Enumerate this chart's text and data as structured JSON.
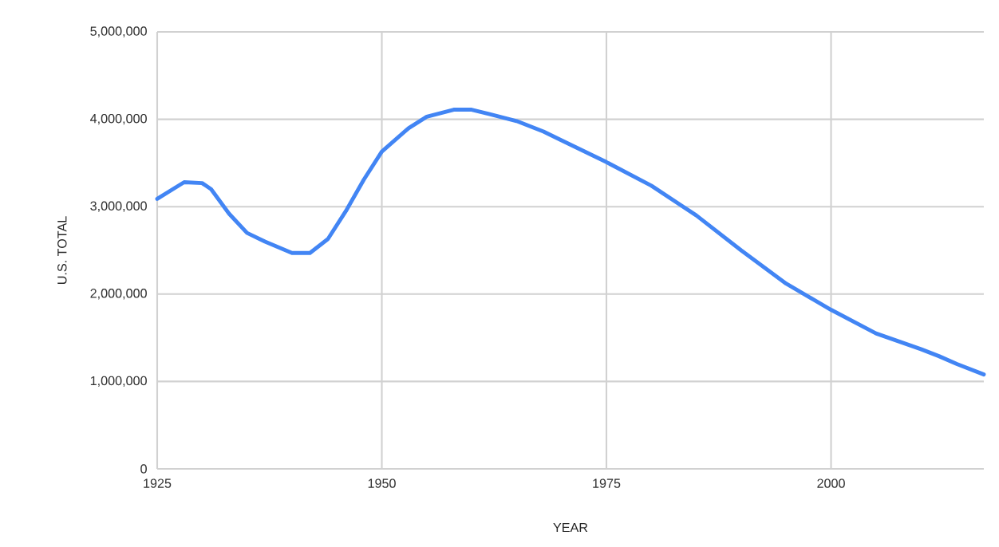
{
  "chart_data": {
    "type": "line",
    "xlabel": "YEAR",
    "ylabel": "U.S. TOTAL",
    "x": [
      1925,
      1928,
      1930,
      1931,
      1933,
      1935,
      1937,
      1940,
      1942,
      1944,
      1946,
      1948,
      1950,
      1953,
      1955,
      1958,
      1960,
      1962,
      1965,
      1968,
      1970,
      1975,
      1980,
      1985,
      1990,
      1995,
      2000,
      2005,
      2010,
      2012,
      2014,
      2017
    ],
    "series": [
      {
        "color": "#4285f4",
        "values": [
          3090000,
          3280000,
          3270000,
          3200000,
          2920000,
          2700000,
          2600000,
          2470000,
          2470000,
          2630000,
          2950000,
          3310000,
          3630000,
          3900000,
          4030000,
          4110000,
          4110000,
          4060000,
          3980000,
          3860000,
          3760000,
          3510000,
          3240000,
          2900000,
          2500000,
          2120000,
          1820000,
          1550000,
          1370000,
          1290000,
          1200000,
          1080000
        ]
      }
    ],
    "xlim": [
      1925,
      2017
    ],
    "ylim": [
      0,
      5000000
    ],
    "xticks": [
      1925,
      1950,
      1975,
      2000
    ],
    "yticks": [
      {
        "value": 0,
        "label": "0"
      },
      {
        "value": 1000000,
        "label": "1,000,000"
      },
      {
        "value": 2000000,
        "label": "2,000,000"
      },
      {
        "value": 3000000,
        "label": "3,000,000"
      },
      {
        "value": 4000000,
        "label": "4,000,000"
      },
      {
        "value": 5000000,
        "label": "5,000,000"
      }
    ],
    "grid": true,
    "marker": "none",
    "line_style": "solid"
  }
}
